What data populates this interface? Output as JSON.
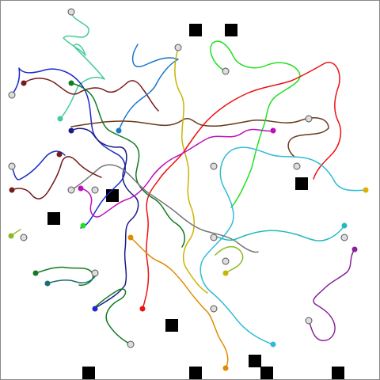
{
  "board": {
    "frame_color": "#888888",
    "background": "#ffffff"
  },
  "obstacle_color": "#000000",
  "start_marker_fill": "#dddddd",
  "start_marker_stroke": "#555555",
  "trails": [
    {
      "name": "teal-green-trail",
      "color": "#44cc99"
    },
    {
      "name": "blue-trail-top-left",
      "color": "#1a2acc"
    },
    {
      "name": "maroon-trail",
      "color": "#771a1a"
    },
    {
      "name": "navy-trail",
      "color": "#1a1a8a"
    },
    {
      "name": "dark-green-trail",
      "color": "#127a22"
    },
    {
      "name": "sky-blue-trail",
      "color": "#1a77cc"
    },
    {
      "name": "brown-trail",
      "color": "#6b3a1a"
    },
    {
      "name": "olive-yellow-trail",
      "color": "#c9b400"
    },
    {
      "name": "lime-trail",
      "color": "#22e022"
    },
    {
      "name": "red-trail",
      "color": "#ee1111"
    },
    {
      "name": "orange-trail",
      "color": "#e08a00"
    },
    {
      "name": "cyan-trail",
      "color": "#33bbd6"
    },
    {
      "name": "magenta-trail",
      "color": "#bb11bb"
    },
    {
      "name": "gray-trail",
      "color": "#777777"
    },
    {
      "name": "yellow-green-trail",
      "color": "#88bb22"
    },
    {
      "name": "turquoise-trail",
      "color": "#22bbbb"
    },
    {
      "name": "purple-trail",
      "color": "#882299"
    }
  ]
}
